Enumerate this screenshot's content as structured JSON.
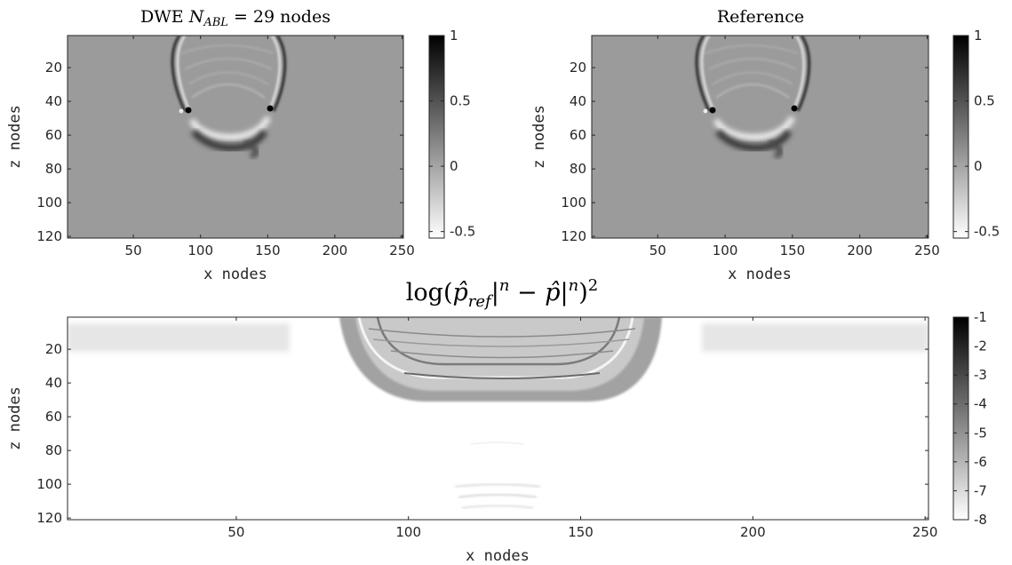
{
  "chart_data": [
    {
      "type": "heatmap",
      "title": "DWE N_ABL = 29 nodes",
      "xlabel": "x nodes",
      "ylabel": "z nodes",
      "xlim": [
        1,
        251
      ],
      "ylim": [
        1,
        121
      ],
      "x_ticks": [
        50,
        100,
        150,
        200,
        250
      ],
      "y_ticks": [
        20,
        40,
        60,
        80,
        100,
        120
      ],
      "colorbar": {
        "ticks": [
          1,
          0.5,
          0,
          -0.5
        ],
        "range": [
          -0.55,
          1
        ]
      },
      "colormap": "gray (white = low, black = high)"
    },
    {
      "type": "heatmap",
      "title": "Reference",
      "xlabel": "x nodes",
      "ylabel": "z nodes",
      "xlim": [
        1,
        251
      ],
      "ylim": [
        1,
        121
      ],
      "x_ticks": [
        50,
        100,
        150,
        200,
        250
      ],
      "y_ticks": [
        20,
        40,
        60,
        80,
        100,
        120
      ],
      "colorbar": {
        "ticks": [
          1,
          0.5,
          0,
          -0.5
        ],
        "range": [
          -0.55,
          1
        ]
      },
      "colormap": "gray (white = low, black = high)"
    },
    {
      "type": "heatmap",
      "title": "log(p̂_ref|^n − p̂|^n)^2",
      "xlabel": "x nodes",
      "ylabel": "z nodes",
      "xlim": [
        1,
        251
      ],
      "ylim": [
        1,
        121
      ],
      "x_ticks": [
        50,
        100,
        150,
        200,
        250
      ],
      "y_ticks": [
        20,
        40,
        60,
        80,
        100,
        120
      ],
      "colorbar": {
        "ticks": [
          -1,
          -2,
          -3,
          -4,
          -5,
          -6,
          -7,
          -8
        ],
        "range": [
          -8,
          -1
        ]
      },
      "colormap": "gray (white = low, black = high)"
    }
  ],
  "colors": {
    "field_background": "#9a9a9a",
    "axes": "#262626"
  }
}
